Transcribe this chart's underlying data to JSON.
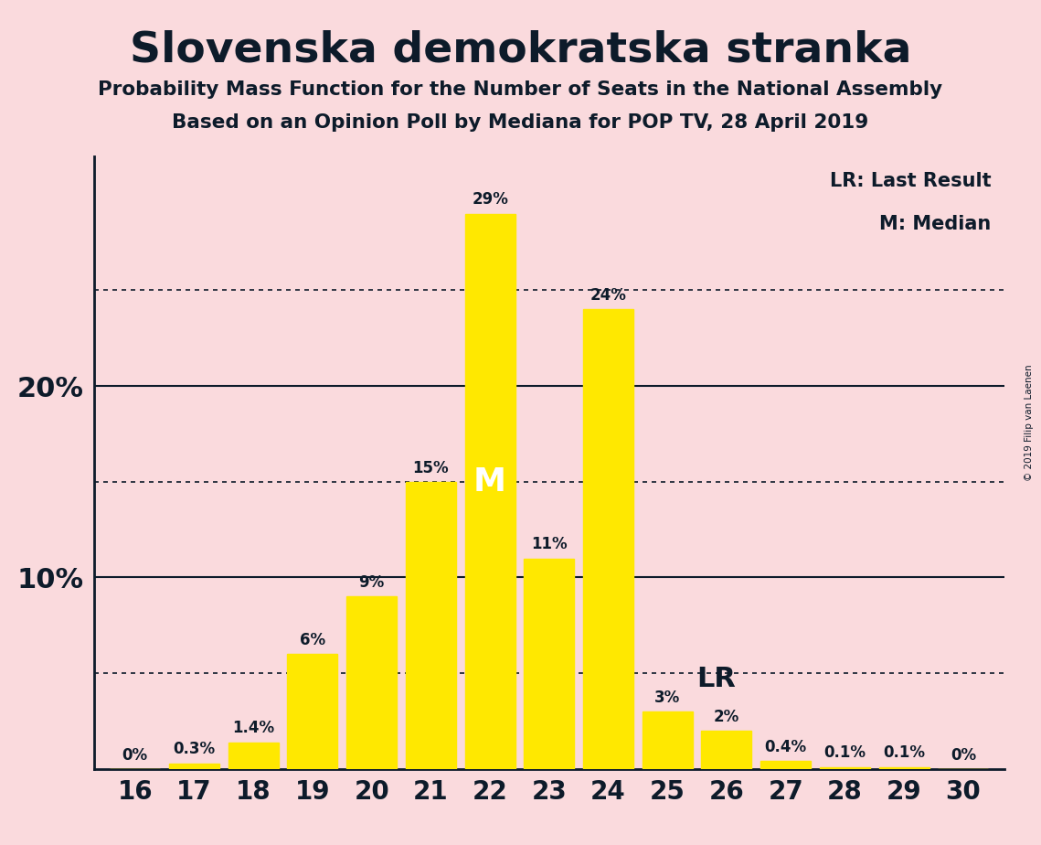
{
  "title": "Slovenska demokratska stranka",
  "subtitle1": "Probability Mass Function for the Number of Seats in the National Assembly",
  "subtitle2": "Based on an Opinion Poll by Mediana for POP TV, 28 April 2019",
  "copyright": "© 2019 Filip van Laenen",
  "seats": [
    16,
    17,
    18,
    19,
    20,
    21,
    22,
    23,
    24,
    25,
    26,
    27,
    28,
    29,
    30
  ],
  "probabilities": [
    0.0,
    0.3,
    1.4,
    6.0,
    9.0,
    15.0,
    29.0,
    11.0,
    24.0,
    3.0,
    2.0,
    0.4,
    0.1,
    0.1,
    0.0
  ],
  "labels": [
    "0%",
    "0.3%",
    "1.4%",
    "6%",
    "9%",
    "15%",
    "29%",
    "11%",
    "24%",
    "3%",
    "2%",
    "0.4%",
    "0.1%",
    "0.1%",
    "0%"
  ],
  "bar_color": "#FFE800",
  "background_color": "#FADADD",
  "text_color": "#0D1B2A",
  "median_seat": 22,
  "last_result_seat": 25,
  "legend_lr": "LR: Last Result",
  "legend_m": "M: Median",
  "ylim": [
    0,
    32
  ],
  "dotted_lines": [
    5,
    15,
    25
  ],
  "solid_lines": [
    10,
    20
  ]
}
